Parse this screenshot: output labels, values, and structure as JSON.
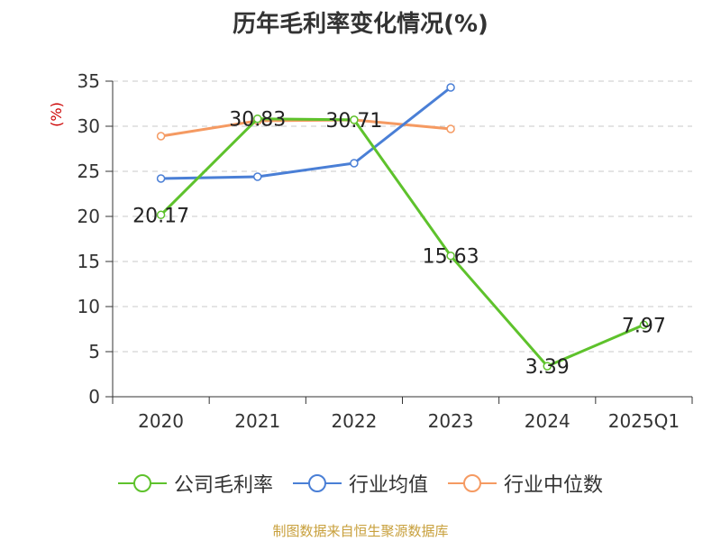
{
  "chart_data": {
    "type": "line",
    "title": "历年毛利率变化情况(%)",
    "ylabel": "(%)",
    "categories": [
      "2020",
      "2021",
      "2022",
      "2023",
      "2024",
      "2025Q1"
    ],
    "ylim": [
      0,
      35
    ],
    "yticks": [
      0,
      5,
      10,
      15,
      20,
      25,
      30,
      35
    ],
    "grid": true,
    "legend_position": "bottom",
    "series": [
      {
        "name": "公司毛利率",
        "color": "#5ec22c",
        "values": [
          20.17,
          30.83,
          30.71,
          15.63,
          3.39,
          7.97
        ],
        "labels": [
          "20.17",
          "30.83",
          "30.71",
          "15.63",
          "3.39",
          "7.97"
        ]
      },
      {
        "name": "行业均值",
        "color": "#4a7fd6",
        "values": [
          24.2,
          24.4,
          25.9,
          34.3,
          null,
          null
        ]
      },
      {
        "name": "行业中位数",
        "color": "#f59a62",
        "values": [
          28.9,
          30.6,
          30.7,
          29.7,
          null,
          null
        ]
      }
    ]
  },
  "source_note": "制图数据来自恒生聚源数据库"
}
